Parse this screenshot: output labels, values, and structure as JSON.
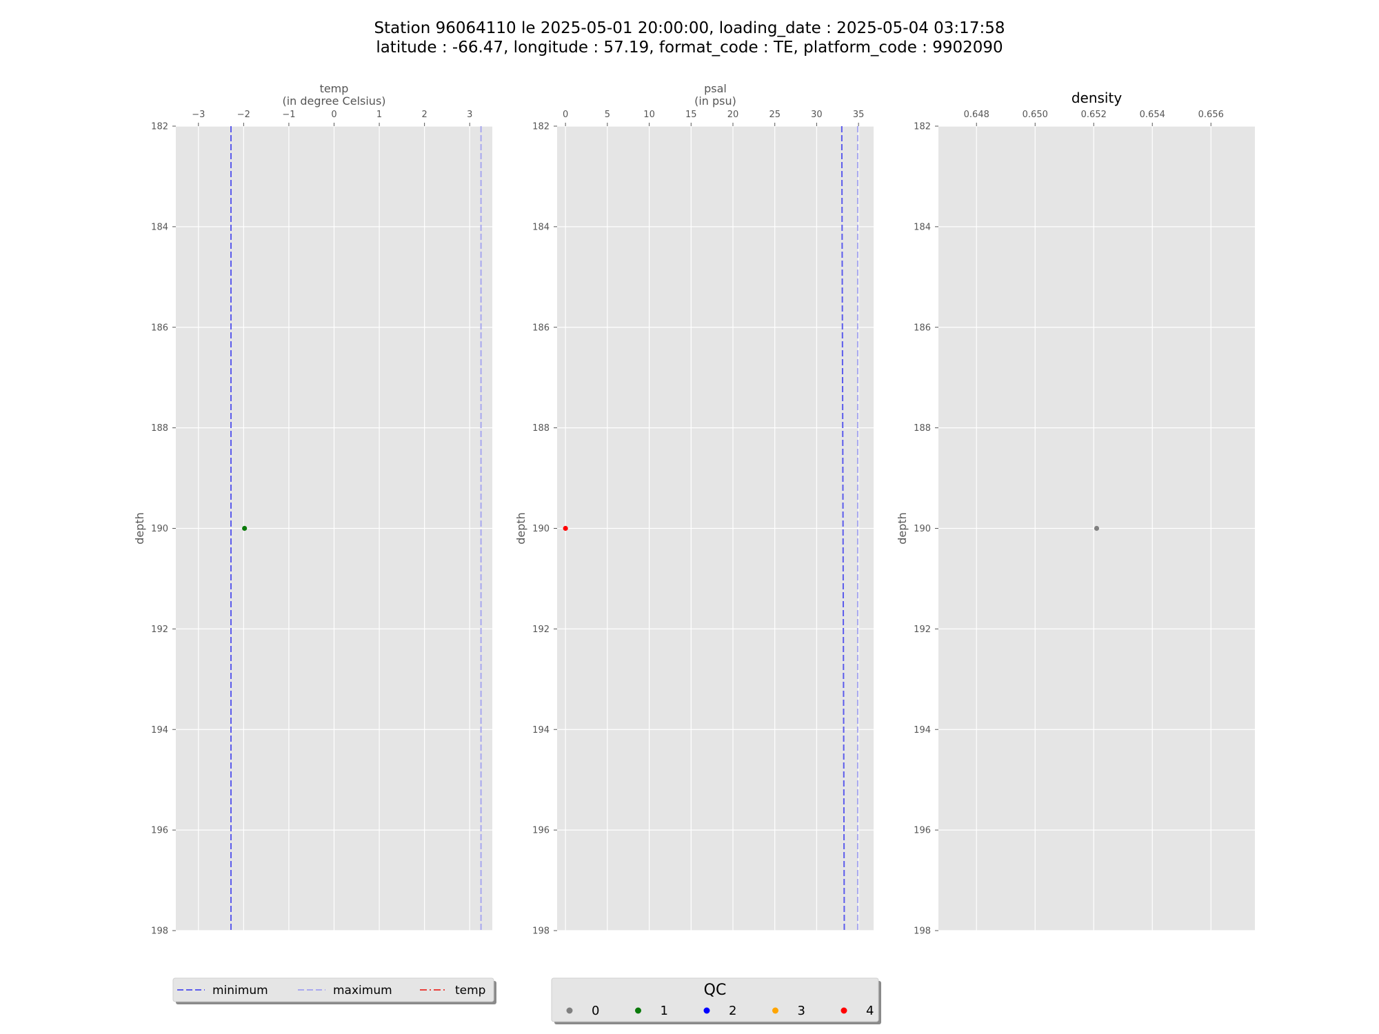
{
  "figure": {
    "title_line1": "Station 96064110 le 2025-05-01 20:00:00, loading_date : 2025-05-04 03:17:58",
    "title_line2": "latitude : -66.47, longitude : 57.19, format_code : TE, platform_code : 9902090"
  },
  "colors": {
    "panel_bg": "#e5e5e5",
    "grid": "#ffffff",
    "tick_text": "#555555",
    "minimum_line": "#5b5bec",
    "maximum_line": "#a7a7ef",
    "temp_line": "#e8413c",
    "qc": {
      "0": "#808080",
      "1": "#0b7a0b",
      "2": "#0000ff",
      "3": "#ffa500",
      "4": "#ff0000"
    }
  },
  "chart_data": [
    {
      "type": "scatter",
      "name": "temp",
      "xlabel": "temp\n(in degree Celsius)",
      "ylabel": "depth",
      "xlim": [
        -3.5,
        3.5
      ],
      "ylim": [
        182,
        198
      ],
      "y_inverted": true,
      "x_ticks": [
        -3,
        -2,
        -1,
        0,
        1,
        2,
        3
      ],
      "x_tick_labels": [
        "−3",
        "−2",
        "−1",
        "0",
        "1",
        "2",
        "3"
      ],
      "y_ticks": [
        182,
        184,
        186,
        188,
        190,
        192,
        194,
        196,
        198
      ],
      "x_axis_position": "top",
      "grid": true,
      "points": [
        {
          "x": -1.98,
          "y": 190,
          "qc": 1
        }
      ],
      "reference_lines": [
        {
          "name": "minimum",
          "x": -2.28,
          "style": "dashed",
          "color_key": "minimum_line"
        },
        {
          "name": "maximum",
          "x": 3.25,
          "style": "dashed",
          "color_key": "maximum_line"
        }
      ]
    },
    {
      "type": "scatter",
      "name": "psal",
      "xlabel": "psal\n(in psu)",
      "ylabel": "depth",
      "xlim": [
        -1,
        36.8
      ],
      "ylim": [
        182,
        198
      ],
      "y_inverted": true,
      "x_ticks": [
        0,
        5,
        10,
        15,
        20,
        25,
        30,
        35
      ],
      "x_tick_labels": [
        "0",
        "5",
        "10",
        "15",
        "20",
        "25",
        "30",
        "35"
      ],
      "y_ticks": [
        182,
        184,
        186,
        188,
        190,
        192,
        194,
        196,
        198
      ],
      "x_axis_position": "top",
      "grid": true,
      "points": [
        {
          "x": 0,
          "y": 190,
          "qc": 4
        }
      ],
      "reference_lines": [
        {
          "name": "minimum",
          "x": [
            33,
            33.3
          ],
          "style": "dashed",
          "color_key": "minimum_line"
        },
        {
          "name": "maximum",
          "x": 34.9,
          "style": "dashed",
          "color_key": "maximum_line"
        }
      ]
    },
    {
      "type": "scatter",
      "name": "density",
      "title": "density",
      "xlabel": "",
      "ylabel": "depth",
      "xlim": [
        0.6467,
        0.6575
      ],
      "ylim": [
        182,
        198
      ],
      "y_inverted": true,
      "x_ticks": [
        0.648,
        0.65,
        0.652,
        0.654,
        0.656
      ],
      "x_tick_labels": [
        "0.648",
        "0.650",
        "0.652",
        "0.654",
        "0.656"
      ],
      "y_ticks": [
        182,
        184,
        186,
        188,
        190,
        192,
        194,
        196,
        198
      ],
      "x_axis_position": "top",
      "grid": true,
      "points": [
        {
          "x": 0.6521,
          "y": 190,
          "qc": 0
        }
      ],
      "reference_lines": []
    }
  ],
  "legend_lines": {
    "placement": "bottom-left",
    "entries": [
      {
        "label": "minimum",
        "style": "dashed",
        "color_key": "minimum_line"
      },
      {
        "label": "maximum",
        "style": "dashed",
        "color_key": "maximum_line"
      },
      {
        "label": "temp",
        "style": "dashdot",
        "color_key": "temp_line"
      }
    ]
  },
  "legend_qc": {
    "placement": "bottom-center",
    "title": "QC",
    "entries": [
      {
        "label": "0",
        "color_key": "0"
      },
      {
        "label": "1",
        "color_key": "1"
      },
      {
        "label": "2",
        "color_key": "2"
      },
      {
        "label": "3",
        "color_key": "3"
      },
      {
        "label": "4",
        "color_key": "4"
      }
    ]
  }
}
